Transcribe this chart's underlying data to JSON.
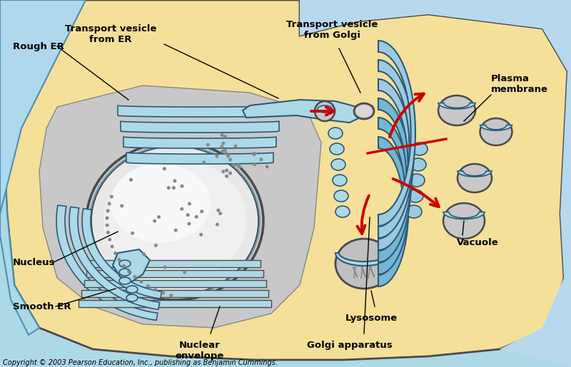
{
  "bg_outer": "#add8e6",
  "bg_cell_fill": "#f5e6a3",
  "cytoplasm_gray": "#c8c8c8",
  "er_blue": "#add8e6",
  "er_dark": "#4a90b8",
  "nucleus_gray": "#d8d8d8",
  "nucleus_white": "#f0f0f0",
  "golgi_blue": "#90c8e0",
  "arrow_red": "#cc0000",
  "plasma_blue": "#b8ddf0",
  "text_color": "#000000",
  "copyright": "Copyright © 2003 Pearson Education, Inc., publishing as Benjamin Cummings.",
  "labels": {
    "rough_er": "Rough ER",
    "transport_er": "Transport vesicle\nfrom ER",
    "transport_golgi": "Transport vesicle\nfrom Golgi",
    "plasma_membrane": "Plasma\nmembrane",
    "nucleus": "Nucleus",
    "smooth_er": "Smooth ER",
    "nuclear_envelope": "Nuclear\nenvelope",
    "golgi": "Golgi apparatus",
    "lysosome": "Lysosome",
    "vacuole": "Vacuole"
  },
  "figsize": [
    8.0,
    5.15
  ],
  "dpi": 100
}
